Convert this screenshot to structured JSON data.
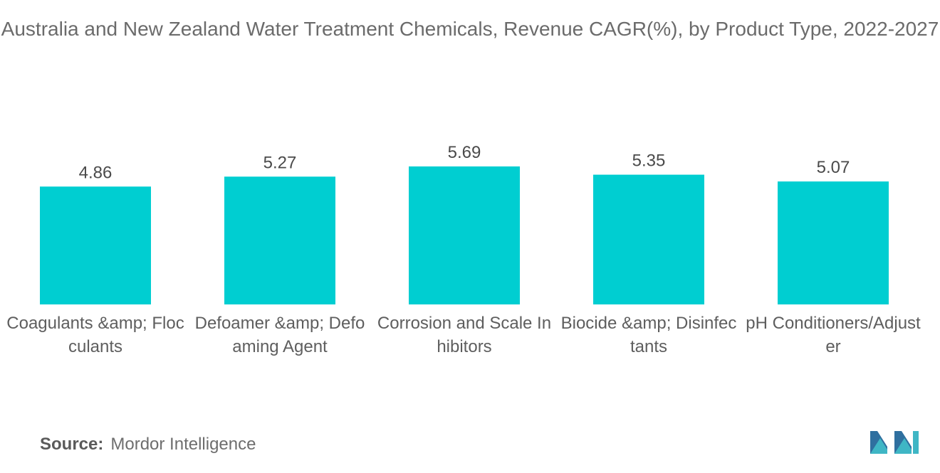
{
  "chart_data": {
    "type": "bar",
    "title": "Australia and New Zealand Water Treatment Chemicals, Revenue CAGR(%), by Product Type, 2022-2027",
    "categories": [
      "Coagulants &amp; Flocculants",
      "Defoamer &amp; Defoaming Agent",
      "Corrosion and Scale Inhibitors",
      "Biocide &amp; Disinfectants",
      "pH Conditioners/Adjuster"
    ],
    "values": [
      4.86,
      5.27,
      5.69,
      5.35,
      5.07
    ],
    "data_labels": [
      "4.86",
      "5.27",
      "5.69",
      "5.35",
      "5.07"
    ],
    "xlabel": "",
    "ylabel": "",
    "ylim": [
      0,
      5.69
    ],
    "grid": false,
    "legend": "none",
    "bar_color": "#00ced1"
  },
  "source": {
    "label": "Source:",
    "text": "Mordor Intelligence"
  },
  "brand": {
    "logo_icon": "mordor-intelligence-logo-icon",
    "colors": [
      "#2f6f9f",
      "#3fb6c5"
    ]
  }
}
